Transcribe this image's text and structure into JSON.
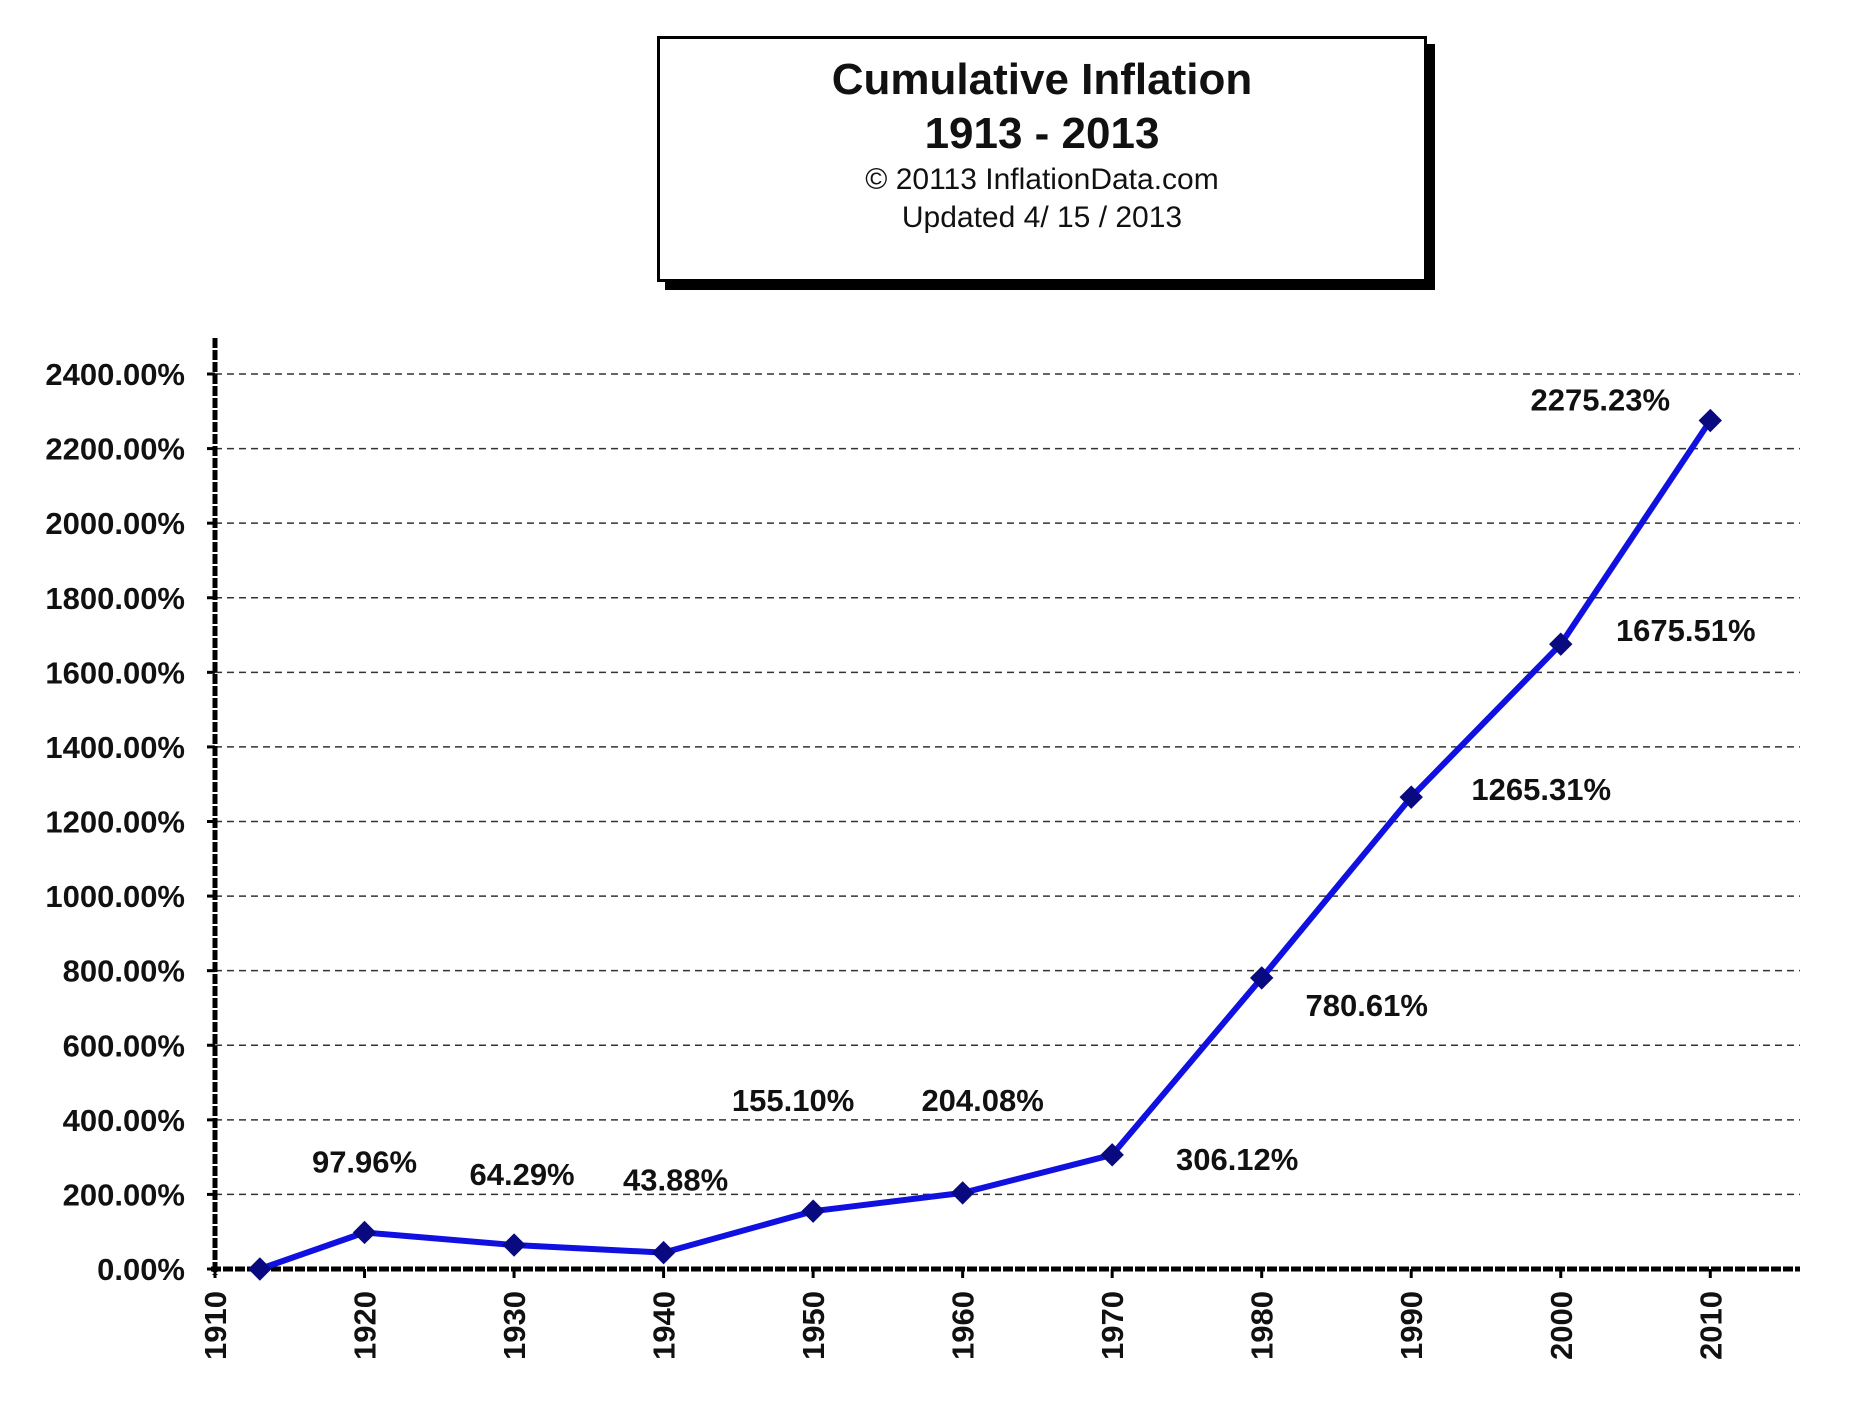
{
  "header": {
    "title_line1": "Cumulative Inflation",
    "title_line2": "1913 - 2013",
    "copyright": "© 20113 InflationData.com",
    "updated": "Updated   4/ 15 / 2013"
  },
  "colors": {
    "line": "#1010e0",
    "marker": "#0a0a80",
    "grid": "#333333",
    "axis": "#000000",
    "text": "#111111"
  },
  "chart_data": {
    "type": "line",
    "title": "Cumulative Inflation 1913 - 2013",
    "xlabel": "",
    "ylabel": "",
    "xlim": [
      1910,
      2016
    ],
    "ylim": [
      0,
      2400
    ],
    "x_ticks": [
      "1910",
      "1920",
      "1930",
      "1940",
      "1950",
      "1960",
      "1970",
      "1980",
      "1990",
      "2000",
      "2010"
    ],
    "y_ticks": [
      "0.00%",
      "200.00%",
      "400.00%",
      "600.00%",
      "800.00%",
      "1000.00%",
      "1200.00%",
      "1400.00%",
      "1600.00%",
      "1800.00%",
      "2000.00%",
      "2200.00%",
      "2400.00%"
    ],
    "grid": true,
    "grid_style": "dashed horizontal",
    "series": [
      {
        "x": [
          1913,
          1920,
          1930,
          1940,
          1950,
          1960,
          1970,
          1980,
          1990,
          2000,
          2010
        ],
        "y": [
          0,
          97.96,
          64.29,
          43.88,
          155.1,
          204.08,
          306.12,
          780.61,
          1265.31,
          1675.51,
          2275.23
        ],
        "labels": [
          "",
          "97.96%",
          "64.29%",
          "43.88%",
          "155.10%",
          "204.08%",
          "306.12%",
          "780.61%",
          "1265.31%",
          "1675.51%",
          "2275.23%"
        ]
      }
    ]
  }
}
